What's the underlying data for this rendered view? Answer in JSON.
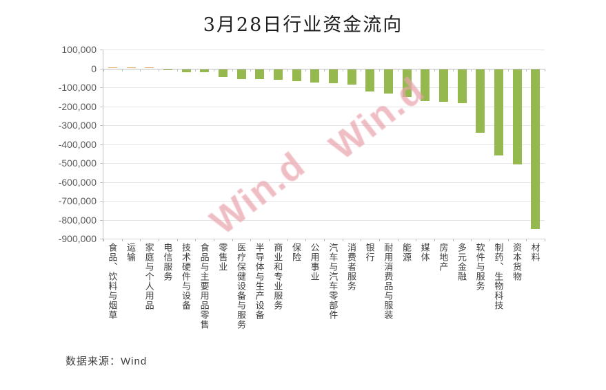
{
  "title": "3月28日行业资金流向",
  "source_note": "数据来源：Wind",
  "watermark_text": "Win.d",
  "colors": {
    "positive_bar": "#e0a055",
    "negative_bar": "#95b94f",
    "gridline": "#e4e4e4",
    "axis": "#bfbfbf",
    "y_label_text": "#595959",
    "x_label_text": "#3d3d3d",
    "watermark": "#e9a3ad"
  },
  "chart_data": {
    "type": "bar",
    "title": "3月28日行业资金流向",
    "categories": [
      "食品、饮料与烟草",
      "运输",
      "家庭与个人用品",
      "电信服务",
      "技术硬件与设备",
      "食品与主要用品零售",
      "零售业",
      "医疗保健设备与服务",
      "半导体与生产设备",
      "商业和专业服务",
      "保险",
      "公用事业",
      "汽车与汽车零部件",
      "消费者服务",
      "银行",
      "耐用消费品与服装",
      "能源",
      "媒体",
      "房地产",
      "多元金融",
      "软件与服务",
      "制药、生物科技",
      "资本货物",
      "材料"
    ],
    "values": [
      4000,
      3000,
      2000,
      -3000,
      -15000,
      -18000,
      -42000,
      -52000,
      -53000,
      -58000,
      -62000,
      -70000,
      -75000,
      -81000,
      -118000,
      -130000,
      -148000,
      -170000,
      -174000,
      -180000,
      -335000,
      -455000,
      -505000,
      -845000
    ],
    "xlabel": "",
    "ylabel": "",
    "ylim": [
      -900000,
      100000
    ],
    "ytick_interval": 100000,
    "ytick_labels": [
      "100,000",
      "0",
      "-100,000",
      "-200,000",
      "-300,000",
      "-400,000",
      "-500,000",
      "-600,000",
      "-700,000",
      "-800,000",
      "-900,000"
    ],
    "grid": true,
    "legend_position": "none",
    "source": "数据来源：Wind"
  }
}
